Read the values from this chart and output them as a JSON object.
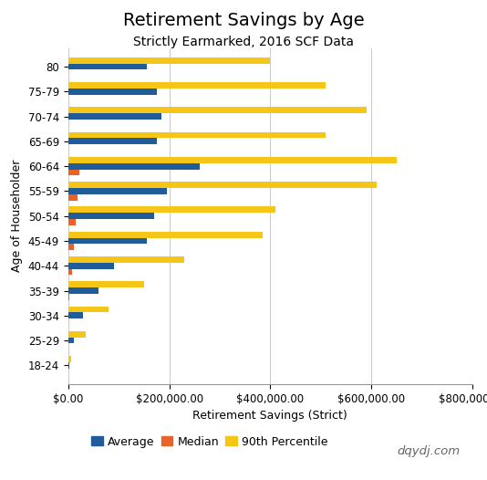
{
  "title": "Retirement Savings by Age",
  "subtitle": "Strictly Earmarked, 2016 SCF Data",
  "xlabel": "Retirement Savings (Strict)",
  "ylabel": "Age of Householder",
  "watermark": "dqydj.com",
  "categories": [
    "18-24",
    "25-29",
    "30-34",
    "35-39",
    "40-44",
    "45-49",
    "50-54",
    "55-59",
    "60-64",
    "65-69",
    "70-74",
    "75-79",
    "80"
  ],
  "average": [
    3000,
    12000,
    30000,
    60000,
    90000,
    155000,
    170000,
    195000,
    260000,
    175000,
    185000,
    175000,
    155000
  ],
  "median": [
    500,
    500,
    1000,
    3000,
    8000,
    12000,
    15000,
    18000,
    22000,
    1000,
    1000,
    1000,
    1000
  ],
  "p90": [
    5000,
    35000,
    80000,
    150000,
    230000,
    385000,
    410000,
    610000,
    650000,
    510000,
    590000,
    510000,
    400000
  ],
  "color_avg": "#1F5C99",
  "color_med": "#E8622A",
  "color_p90": "#F5C518",
  "background_color": "#FFFFFF",
  "xlim": [
    0,
    800000
  ],
  "bar_height": 0.25,
  "title_fontsize": 14,
  "subtitle_fontsize": 10,
  "label_fontsize": 9,
  "tick_fontsize": 8.5
}
